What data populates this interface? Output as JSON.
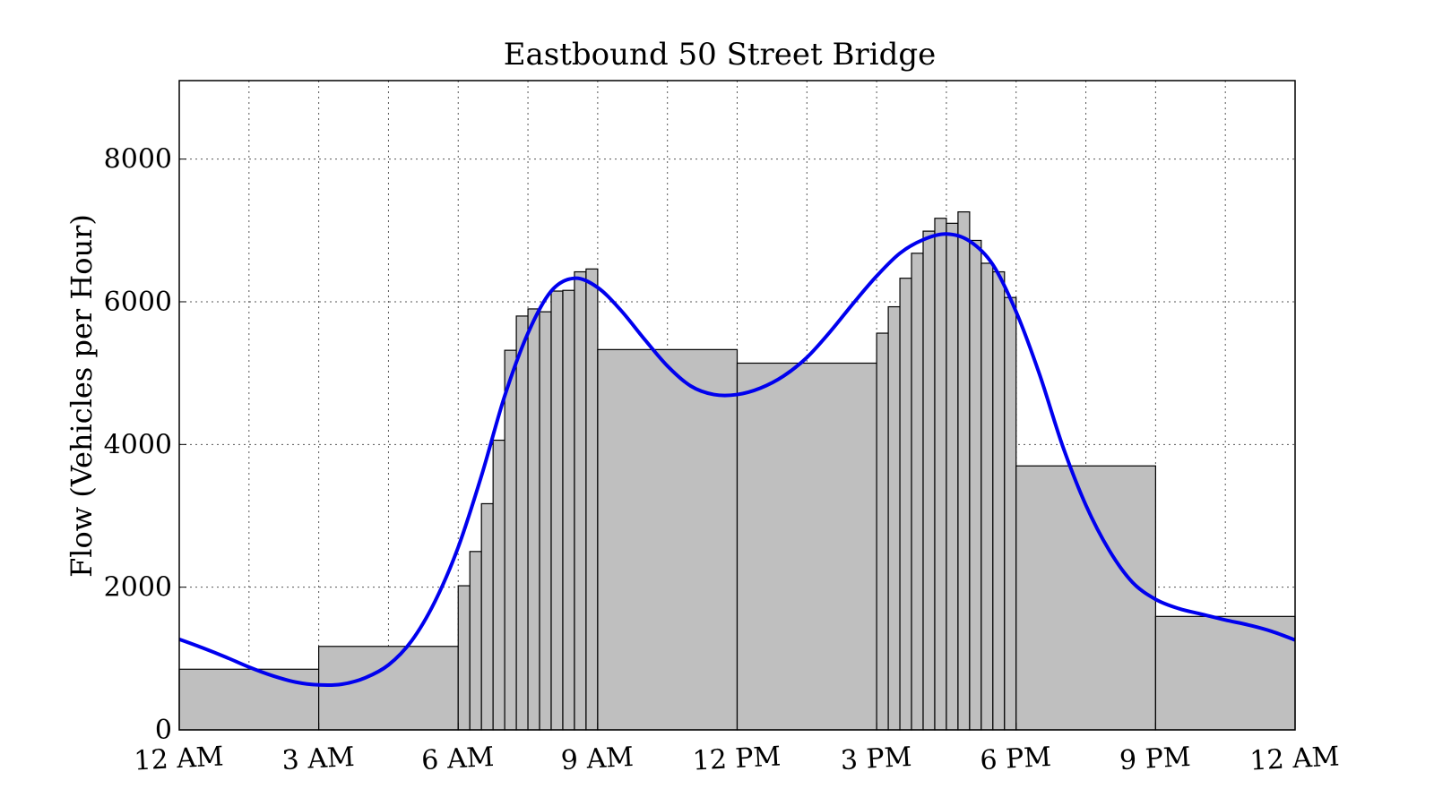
{
  "chart_data": {
    "type": "bar",
    "title": "Eastbound 50 Street Bridge",
    "xlabel": "",
    "ylabel": "Flow (Vehicles per Hour)",
    "ylim": [
      0,
      9100
    ],
    "xlim_hours": [
      0,
      24
    ],
    "grid": true,
    "x_ticks": [
      "12 AM",
      "3 AM",
      "6 AM",
      "9 AM",
      "12 PM",
      "3 PM",
      "6 PM",
      "9 PM",
      "12 AM"
    ],
    "y_ticks": [
      0,
      2000,
      4000,
      6000,
      8000
    ],
    "bar_color": "#bfbfbf",
    "curve_color": "#0000ee",
    "bars": [
      {
        "start": 0,
        "end": 3,
        "value": 850
      },
      {
        "start": 3,
        "end": 6,
        "value": 1170
      },
      {
        "start": 6,
        "end": 6.25,
        "value": 2020
      },
      {
        "start": 6.25,
        "end": 6.5,
        "value": 2500
      },
      {
        "start": 6.5,
        "end": 6.75,
        "value": 3170
      },
      {
        "start": 6.75,
        "end": 7,
        "value": 4060
      },
      {
        "start": 7,
        "end": 7.25,
        "value": 5320
      },
      {
        "start": 7.25,
        "end": 7.5,
        "value": 5800
      },
      {
        "start": 7.5,
        "end": 7.75,
        "value": 5900
      },
      {
        "start": 7.75,
        "end": 8,
        "value": 5860
      },
      {
        "start": 8,
        "end": 8.25,
        "value": 6150
      },
      {
        "start": 8.25,
        "end": 8.5,
        "value": 6160
      },
      {
        "start": 8.5,
        "end": 8.75,
        "value": 6420
      },
      {
        "start": 8.75,
        "end": 9,
        "value": 6460
      },
      {
        "start": 9,
        "end": 12,
        "value": 5330
      },
      {
        "start": 12,
        "end": 15,
        "value": 5140
      },
      {
        "start": 15,
        "end": 15.25,
        "value": 5560
      },
      {
        "start": 15.25,
        "end": 15.5,
        "value": 5930
      },
      {
        "start": 15.5,
        "end": 15.75,
        "value": 6330
      },
      {
        "start": 15.75,
        "end": 16,
        "value": 6680
      },
      {
        "start": 16,
        "end": 16.25,
        "value": 6990
      },
      {
        "start": 16.25,
        "end": 16.5,
        "value": 7170
      },
      {
        "start": 16.5,
        "end": 16.75,
        "value": 7100
      },
      {
        "start": 16.75,
        "end": 17,
        "value": 7260
      },
      {
        "start": 17,
        "end": 17.25,
        "value": 6860
      },
      {
        "start": 17.25,
        "end": 17.5,
        "value": 6540
      },
      {
        "start": 17.5,
        "end": 17.75,
        "value": 6420
      },
      {
        "start": 17.75,
        "end": 18,
        "value": 6060
      },
      {
        "start": 18,
        "end": 21,
        "value": 3700
      },
      {
        "start": 21,
        "end": 24,
        "value": 1590
      }
    ],
    "curve": {
      "x": [
        0,
        0.5,
        1,
        1.5,
        2,
        2.5,
        3,
        3.5,
        4,
        4.5,
        5,
        5.5,
        6,
        6.5,
        7,
        7.5,
        8,
        8.5,
        9,
        9.5,
        10,
        10.5,
        11,
        11.5,
        12,
        12.5,
        13,
        13.5,
        14,
        14.5,
        15,
        15.5,
        16,
        16.5,
        17,
        17.5,
        18,
        18.5,
        19,
        19.5,
        20,
        20.5,
        21,
        21.5,
        22,
        22.5,
        23,
        23.5,
        24
      ],
      "y": [
        1270,
        1150,
        1020,
        880,
        760,
        670,
        630,
        640,
        730,
        910,
        1250,
        1800,
        2560,
        3560,
        4680,
        5560,
        6150,
        6330,
        6200,
        5880,
        5480,
        5100,
        4820,
        4700,
        4700,
        4790,
        4960,
        5220,
        5580,
        5980,
        6360,
        6680,
        6870,
        6950,
        6850,
        6520,
        5860,
        4990,
        3980,
        3150,
        2520,
        2070,
        1830,
        1700,
        1620,
        1540,
        1470,
        1380,
        1260
      ]
    }
  }
}
